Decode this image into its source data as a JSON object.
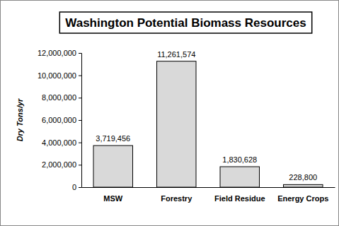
{
  "chart_data": {
    "type": "bar",
    "title": "Washington Potential Biomass Resources",
    "y_label": "Dry Tons/yr",
    "categories": [
      "MSW",
      "Forestry",
      "Field Residue",
      "Energy Crops"
    ],
    "values": [
      3719456,
      11261574,
      1830628,
      228800
    ],
    "value_labels": [
      "3,719,456",
      "11,261,574",
      "1,830,628",
      "228,800"
    ],
    "color": "#d9d9d9",
    "ylim": [
      0,
      12000000
    ],
    "yticks": [
      0,
      {
        "value": 2000000,
        "label": "2,000,000"
      },
      {
        "value": 4000000,
        "label": "4,000,000"
      },
      {
        "value": 6000000,
        "label": "6,000,000"
      },
      {
        "value": 8000000,
        "label": "8,000,000"
      },
      {
        "value": 10000000,
        "label": "10,000,000"
      },
      {
        "value": 12000000,
        "label": "12,000,000"
      }
    ],
    "grid": false,
    "data_labels": true
  }
}
